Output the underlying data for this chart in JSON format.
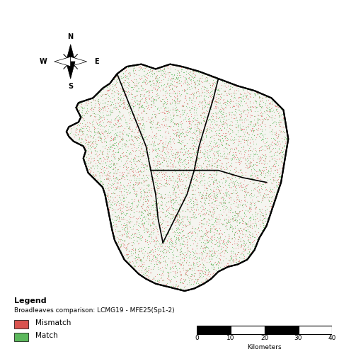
{
  "title": "",
  "background_color": "#ffffff",
  "map_bg_color": "#f5f5f0",
  "border_color": "#000000",
  "match_color": "#5cb85c",
  "mismatch_color": "#d9534f",
  "legend_title": "Legend",
  "legend_subtitle": "Broadleaves comparison: LCMG19 - MFE25(Sp1-2)",
  "legend_mismatch": "Mismatch",
  "legend_match": "Match",
  "scalebar_label": "Kilometers",
  "scalebar_values": [
    0,
    10,
    20,
    30,
    40
  ],
  "figsize": [
    4.79,
    5.0
  ],
  "dpi": 100,
  "random_seed": 42,
  "n_mismatch": 3500,
  "n_match": 4000,
  "outer_border_linewidth": 1.5,
  "province_linewidth": 1.2
}
